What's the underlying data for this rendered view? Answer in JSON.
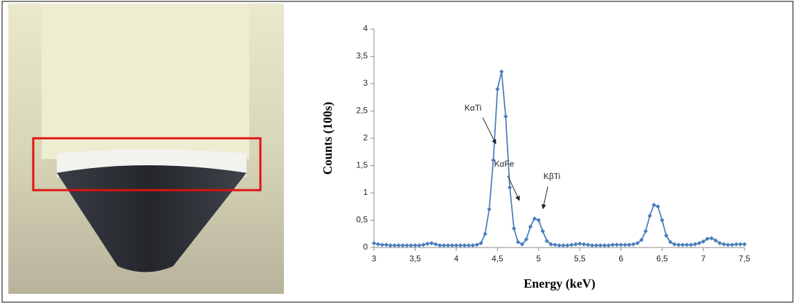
{
  "chart_data": {
    "type": "line",
    "xlabel": "Energy (keV)",
    "ylabel": "Counts (100s)",
    "xlim": [
      3,
      7.5
    ],
    "xticks": [
      3,
      {
        "value": 3.5,
        "label": "3,5"
      },
      4,
      {
        "value": 4.5,
        "label": "4,5"
      },
      5,
      {
        "value": 5.5,
        "label": "5,5"
      },
      6,
      {
        "value": 6.5,
        "label": "6,5"
      },
      7,
      {
        "value": 7.5,
        "label": "7,5"
      }
    ],
    "ylim": [
      0,
      4
    ],
    "yticks": [
      0,
      {
        "value": 0.5,
        "label": "0,5"
      },
      1,
      {
        "value": 1.5,
        "label": "1,5"
      },
      2,
      {
        "value": 2.5,
        "label": "2,5"
      },
      3,
      {
        "value": 3.5,
        "label": "3,5"
      },
      4
    ],
    "annotations": [
      "KαTi",
      "KβTi",
      "KαFe"
    ],
    "color": "#4a7ebb",
    "x": [
      3,
      3.05,
      3.1,
      3.15,
      3.2,
      3.25,
      3.3,
      3.35,
      3.4,
      3.45,
      3.5,
      3.55,
      3.6,
      3.65,
      3.7,
      3.75,
      3.8,
      3.85,
      3.9,
      3.95,
      4,
      4.05,
      4.1,
      4.15,
      4.2,
      4.25,
      4.3,
      4.35,
      4.4,
      4.45,
      4.5,
      4.55,
      4.6,
      4.65,
      4.7,
      4.75,
      4.8,
      4.85,
      4.9,
      4.95,
      5,
      5.05,
      5.1,
      5.15,
      5.2,
      5.25,
      5.3,
      5.35,
      5.4,
      5.45,
      5.5,
      5.55,
      5.6,
      5.65,
      5.7,
      5.75,
      5.8,
      5.85,
      5.9,
      5.95,
      6,
      6.05,
      6.1,
      6.15,
      6.2,
      6.25,
      6.3,
      6.35,
      6.4,
      6.45,
      6.5,
      6.55,
      6.6,
      6.65,
      6.7,
      6.75,
      6.8,
      6.85,
      6.9,
      6.95,
      7,
      7.05,
      7.1,
      7.15,
      7.2,
      7.25,
      7.3,
      7.35,
      7.4,
      7.45,
      7.5
    ],
    "values": [
      0.08,
      0.06,
      0.05,
      0.05,
      0.04,
      0.04,
      0.04,
      0.04,
      0.04,
      0.04,
      0.04,
      0.04,
      0.05,
      0.07,
      0.08,
      0.06,
      0.04,
      0.04,
      0.04,
      0.04,
      0.04,
      0.04,
      0.04,
      0.04,
      0.04,
      0.05,
      0.08,
      0.25,
      0.7,
      1.6,
      2.9,
      3.22,
      2.4,
      1.1,
      0.35,
      0.1,
      0.06,
      0.15,
      0.38,
      0.53,
      0.5,
      0.3,
      0.12,
      0.06,
      0.05,
      0.04,
      0.04,
      0.04,
      0.05,
      0.06,
      0.07,
      0.06,
      0.05,
      0.04,
      0.04,
      0.04,
      0.04,
      0.04,
      0.05,
      0.05,
      0.05,
      0.05,
      0.05,
      0.06,
      0.08,
      0.14,
      0.3,
      0.58,
      0.78,
      0.75,
      0.5,
      0.22,
      0.1,
      0.06,
      0.05,
      0.05,
      0.05,
      0.05,
      0.06,
      0.08,
      0.11,
      0.16,
      0.17,
      0.13,
      0.08,
      0.06,
      0.05,
      0.05,
      0.06,
      0.06,
      0.06
    ]
  }
}
